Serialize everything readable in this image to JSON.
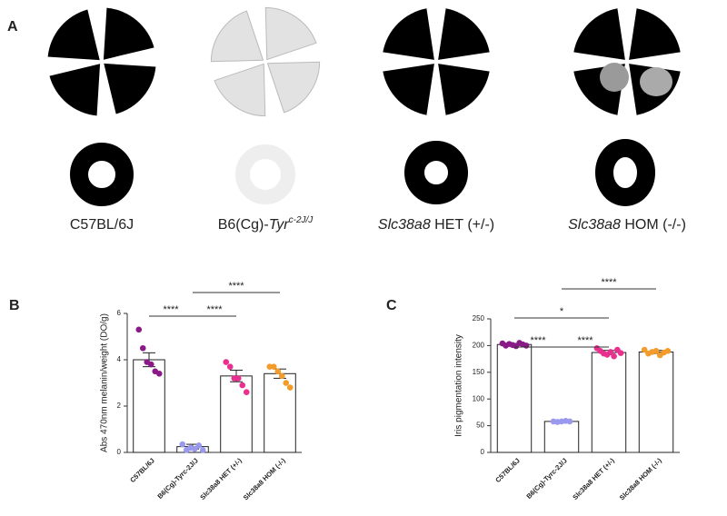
{
  "panel_labels": [
    "A",
    "B",
    "C"
  ],
  "panel_a": {
    "labels": [
      [
        {
          "t": "C57BL/6J",
          "style": "normal"
        }
      ],
      [
        {
          "t": "B6(Cg)-",
          "style": "normal"
        },
        {
          "t": "Tyr",
          "style": "italic"
        },
        {
          "t": "c-2J/J",
          "style": "sup"
        }
      ],
      [
        {
          "t": "Slc38a8",
          "style": "italic"
        },
        {
          "t": " HET (+/-)",
          "style": "normal"
        }
      ],
      [
        {
          "t": "Slc38a8",
          "style": "italic"
        },
        {
          "t": " HOM (-/-)",
          "style": "normal"
        }
      ]
    ]
  },
  "chart_data": [
    {
      "type": "bar",
      "ylabel": "Abs 470nm melanin/weight (DO/g)",
      "categories": [
        "C57BL/6J",
        "B6(Cg)-Tyrc-2J/J",
        "Slc38a8 HET (+/-)",
        "Slc38a8 HOM (-/-)"
      ],
      "values": [
        4.0,
        0.25,
        3.3,
        3.4
      ],
      "errors": [
        0.3,
        0.1,
        0.25,
        0.2
      ],
      "colors": [
        "#8b1a89",
        "#9999ee",
        "#e8308f",
        "#f39c2c"
      ],
      "points": [
        [
          5.3,
          4.5,
          3.9,
          3.8,
          3.5,
          3.4
        ],
        [
          0.35,
          0.1,
          0.2,
          0.15,
          0.3,
          0.1
        ],
        [
          3.9,
          3.7,
          3.2,
          3.2,
          2.9,
          2.6
        ],
        [
          3.7,
          3.7,
          3.5,
          3.3,
          3.0,
          2.8
        ]
      ],
      "ylim": [
        0,
        6
      ],
      "yticks": [
        0,
        2,
        4,
        6
      ],
      "significance": [
        {
          "from": 0,
          "to": 1,
          "label": "****"
        },
        {
          "from": 1,
          "to": 2,
          "label": "****"
        },
        {
          "from": 1,
          "to": 3,
          "label": "****"
        }
      ]
    },
    {
      "type": "bar",
      "ylabel": "Iris pigmentation intensity",
      "categories": [
        "C57BL/6J",
        "B6(Cg)-Tyrc-2J/J",
        "Slc38a8 HET (+/-)",
        "Slc38a8 HOM (-/-)"
      ],
      "values": [
        202,
        58,
        187,
        188
      ],
      "errors": [
        2,
        1,
        4,
        3
      ],
      "colors": [
        "#8b1a89",
        "#9999ee",
        "#e8308f",
        "#f39c2c"
      ],
      "points": [
        [
          204,
          200,
          203,
          201,
          199,
          205,
          202,
          200
        ],
        [
          58,
          57,
          58,
          59,
          58
        ],
        [
          195,
          190,
          185,
          183,
          188,
          180,
          192,
          186
        ],
        [
          192,
          185,
          188,
          190,
          182,
          187,
          190
        ]
      ],
      "ylim": [
        0,
        250
      ],
      "yticks": [
        0,
        50,
        100,
        150,
        200,
        250
      ],
      "significance": [
        {
          "from": 0,
          "to": 1,
          "label": "****"
        },
        {
          "from": 1,
          "to": 2,
          "label": "****"
        },
        {
          "from": 0,
          "to": 2,
          "label": "*"
        },
        {
          "from": 1,
          "to": 3,
          "label": "****"
        }
      ]
    }
  ]
}
